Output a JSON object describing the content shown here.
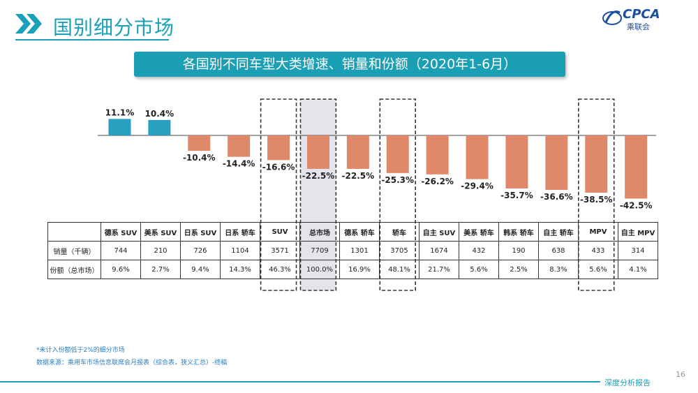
{
  "header": {
    "title": "国别细分市场",
    "logo_text": "CPCA",
    "logo_sub": "乘联会"
  },
  "banner": {
    "text": "各国别不同车型大类增速、销量和份额（2020年1-6月）"
  },
  "colors": {
    "teal": "#1a9fb5",
    "positive_bar": "#2aa0c0",
    "negative_bar": "#e0896a",
    "highlight_fill": "#e4e4ea"
  },
  "chart_data": {
    "type": "bar",
    "categories": [
      "德系 SUV",
      "美系 SUV",
      "日系 SUV",
      "日系 轿车",
      "SUV",
      "总市场",
      "德系 轿车",
      "轿车",
      "自主 SUV",
      "美系 轿车",
      "韩系 轿车",
      "自主 轿车",
      "MPV",
      "自主 MPV"
    ],
    "values": [
      11.1,
      10.4,
      -10.4,
      -14.4,
      -16.6,
      -22.5,
      -22.5,
      -25.3,
      -26.2,
      -29.4,
      -35.7,
      -36.6,
      -38.5,
      -42.5
    ],
    "value_labels": [
      "11.1%",
      "10.4%",
      "-10.4%",
      "-14.4%",
      "-16.6%",
      "-22.5%",
      "-22.5%",
      "-25.3%",
      "-26.2%",
      "-29.4%",
      "-35.7%",
      "-36.6%",
      "-38.5%",
      "-42.5%"
    ],
    "highlighted": [
      "SUV",
      "总市场",
      "轿车",
      "MPV"
    ],
    "ylim": [
      -45,
      12
    ],
    "grid": false
  },
  "table": {
    "headers": [
      "德系 SUV",
      "美系 SUV",
      "日系 SUV",
      "日系 轿车",
      "SUV",
      "总市场",
      "德系 轿车",
      "轿车",
      "自主 SUV",
      "美系 轿车",
      "韩系 轿车",
      "自主 轿车",
      "MPV",
      "自主 MPV"
    ],
    "rows": [
      {
        "label": "销量（千辆）",
        "cells": [
          "744",
          "210",
          "726",
          "1104",
          "3571",
          "7709",
          "1301",
          "3705",
          "1674",
          "432",
          "190",
          "638",
          "433",
          "314"
        ]
      },
      {
        "label": "份额（总市场）",
        "cells": [
          "9.6%",
          "2.7%",
          "9.4%",
          "14.3%",
          "46.3%",
          "100.0%",
          "16.9%",
          "48.1%",
          "21.7%",
          "5.6%",
          "2.5%",
          "8.3%",
          "5.6%",
          "4.1%"
        ]
      }
    ]
  },
  "footnotes": {
    "note": "*未计入份额低于2%的细分市场",
    "source": "数据来源：乘用车市场信息联席会月报表（综合表，狭义汇总）-终稿"
  },
  "footer": {
    "page": "16",
    "tag": "深度分析报告"
  }
}
